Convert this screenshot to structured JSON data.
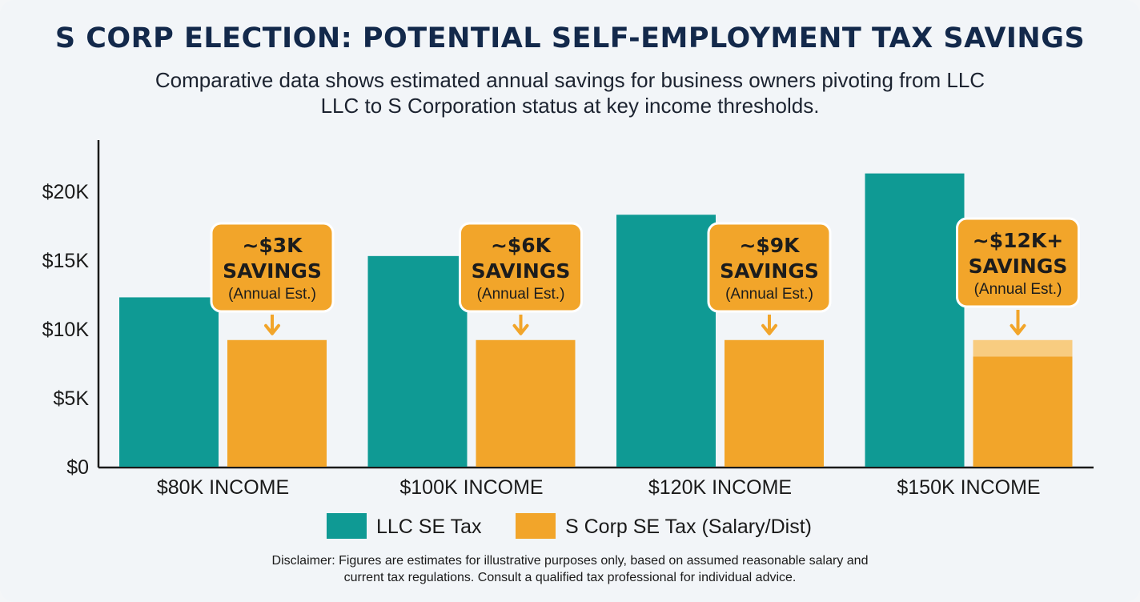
{
  "header": {
    "title": "S CORP ELECTION: POTENTIAL SELF-EMPLOYMENT TAX SAVINGS",
    "subtitle_line1": "Comparative data shows estimated annual savings for business owners pivoting from LLC",
    "subtitle_line2": "LLC to S Corporation status at key income thresholds."
  },
  "chart_data": {
    "type": "bar",
    "categories": [
      "$80K INCOME",
      "$100K INCOME",
      "$120K INCOME",
      "$150K INCOME"
    ],
    "series": [
      {
        "name": "LLC SE Tax",
        "color": "#0f9a94",
        "values": [
          12300,
          15300,
          18300,
          21300
        ]
      },
      {
        "name": "S Corp SE Tax (Salary/Dist)",
        "color": "#f2a52a",
        "values": [
          9200,
          9200,
          9200,
          8000
        ]
      }
    ],
    "faded_extension": {
      "category": "$150K INCOME",
      "value": 9200,
      "color": "#f8cc80"
    },
    "yticks": [
      "$0",
      "$5K",
      "$10K",
      "$15K",
      "$20K"
    ],
    "ytick_values": [
      0,
      5000,
      10000,
      15000,
      20000
    ],
    "ylim": [
      0,
      24000
    ],
    "annotations": [
      {
        "line1": "~$3K",
        "line2": "SAVINGS",
        "line3": "(Annual Est.)"
      },
      {
        "line1": "~$6K",
        "line2": "SAVINGS",
        "line3": "(Annual Est.)"
      },
      {
        "line1": "~$9K",
        "line2": "SAVINGS",
        "line3": "(Annual Est.)"
      },
      {
        "line1": "~$12K+",
        "line2": "SAVINGS",
        "line3": "(Annual Est.)"
      }
    ],
    "legend_position": "bottom",
    "grid": false
  },
  "footer": {
    "disclaimer_line1": "Disclaimer: Figures are estimates for illustrative purposes only, based on assumed reasonable salary and",
    "disclaimer_line2": "current tax regulations. Consult a qualified tax professional for individual advice."
  },
  "colors": {
    "title": "#13294b",
    "annotation_fill": "#f2a52a",
    "axis": "#1a1a1a"
  }
}
